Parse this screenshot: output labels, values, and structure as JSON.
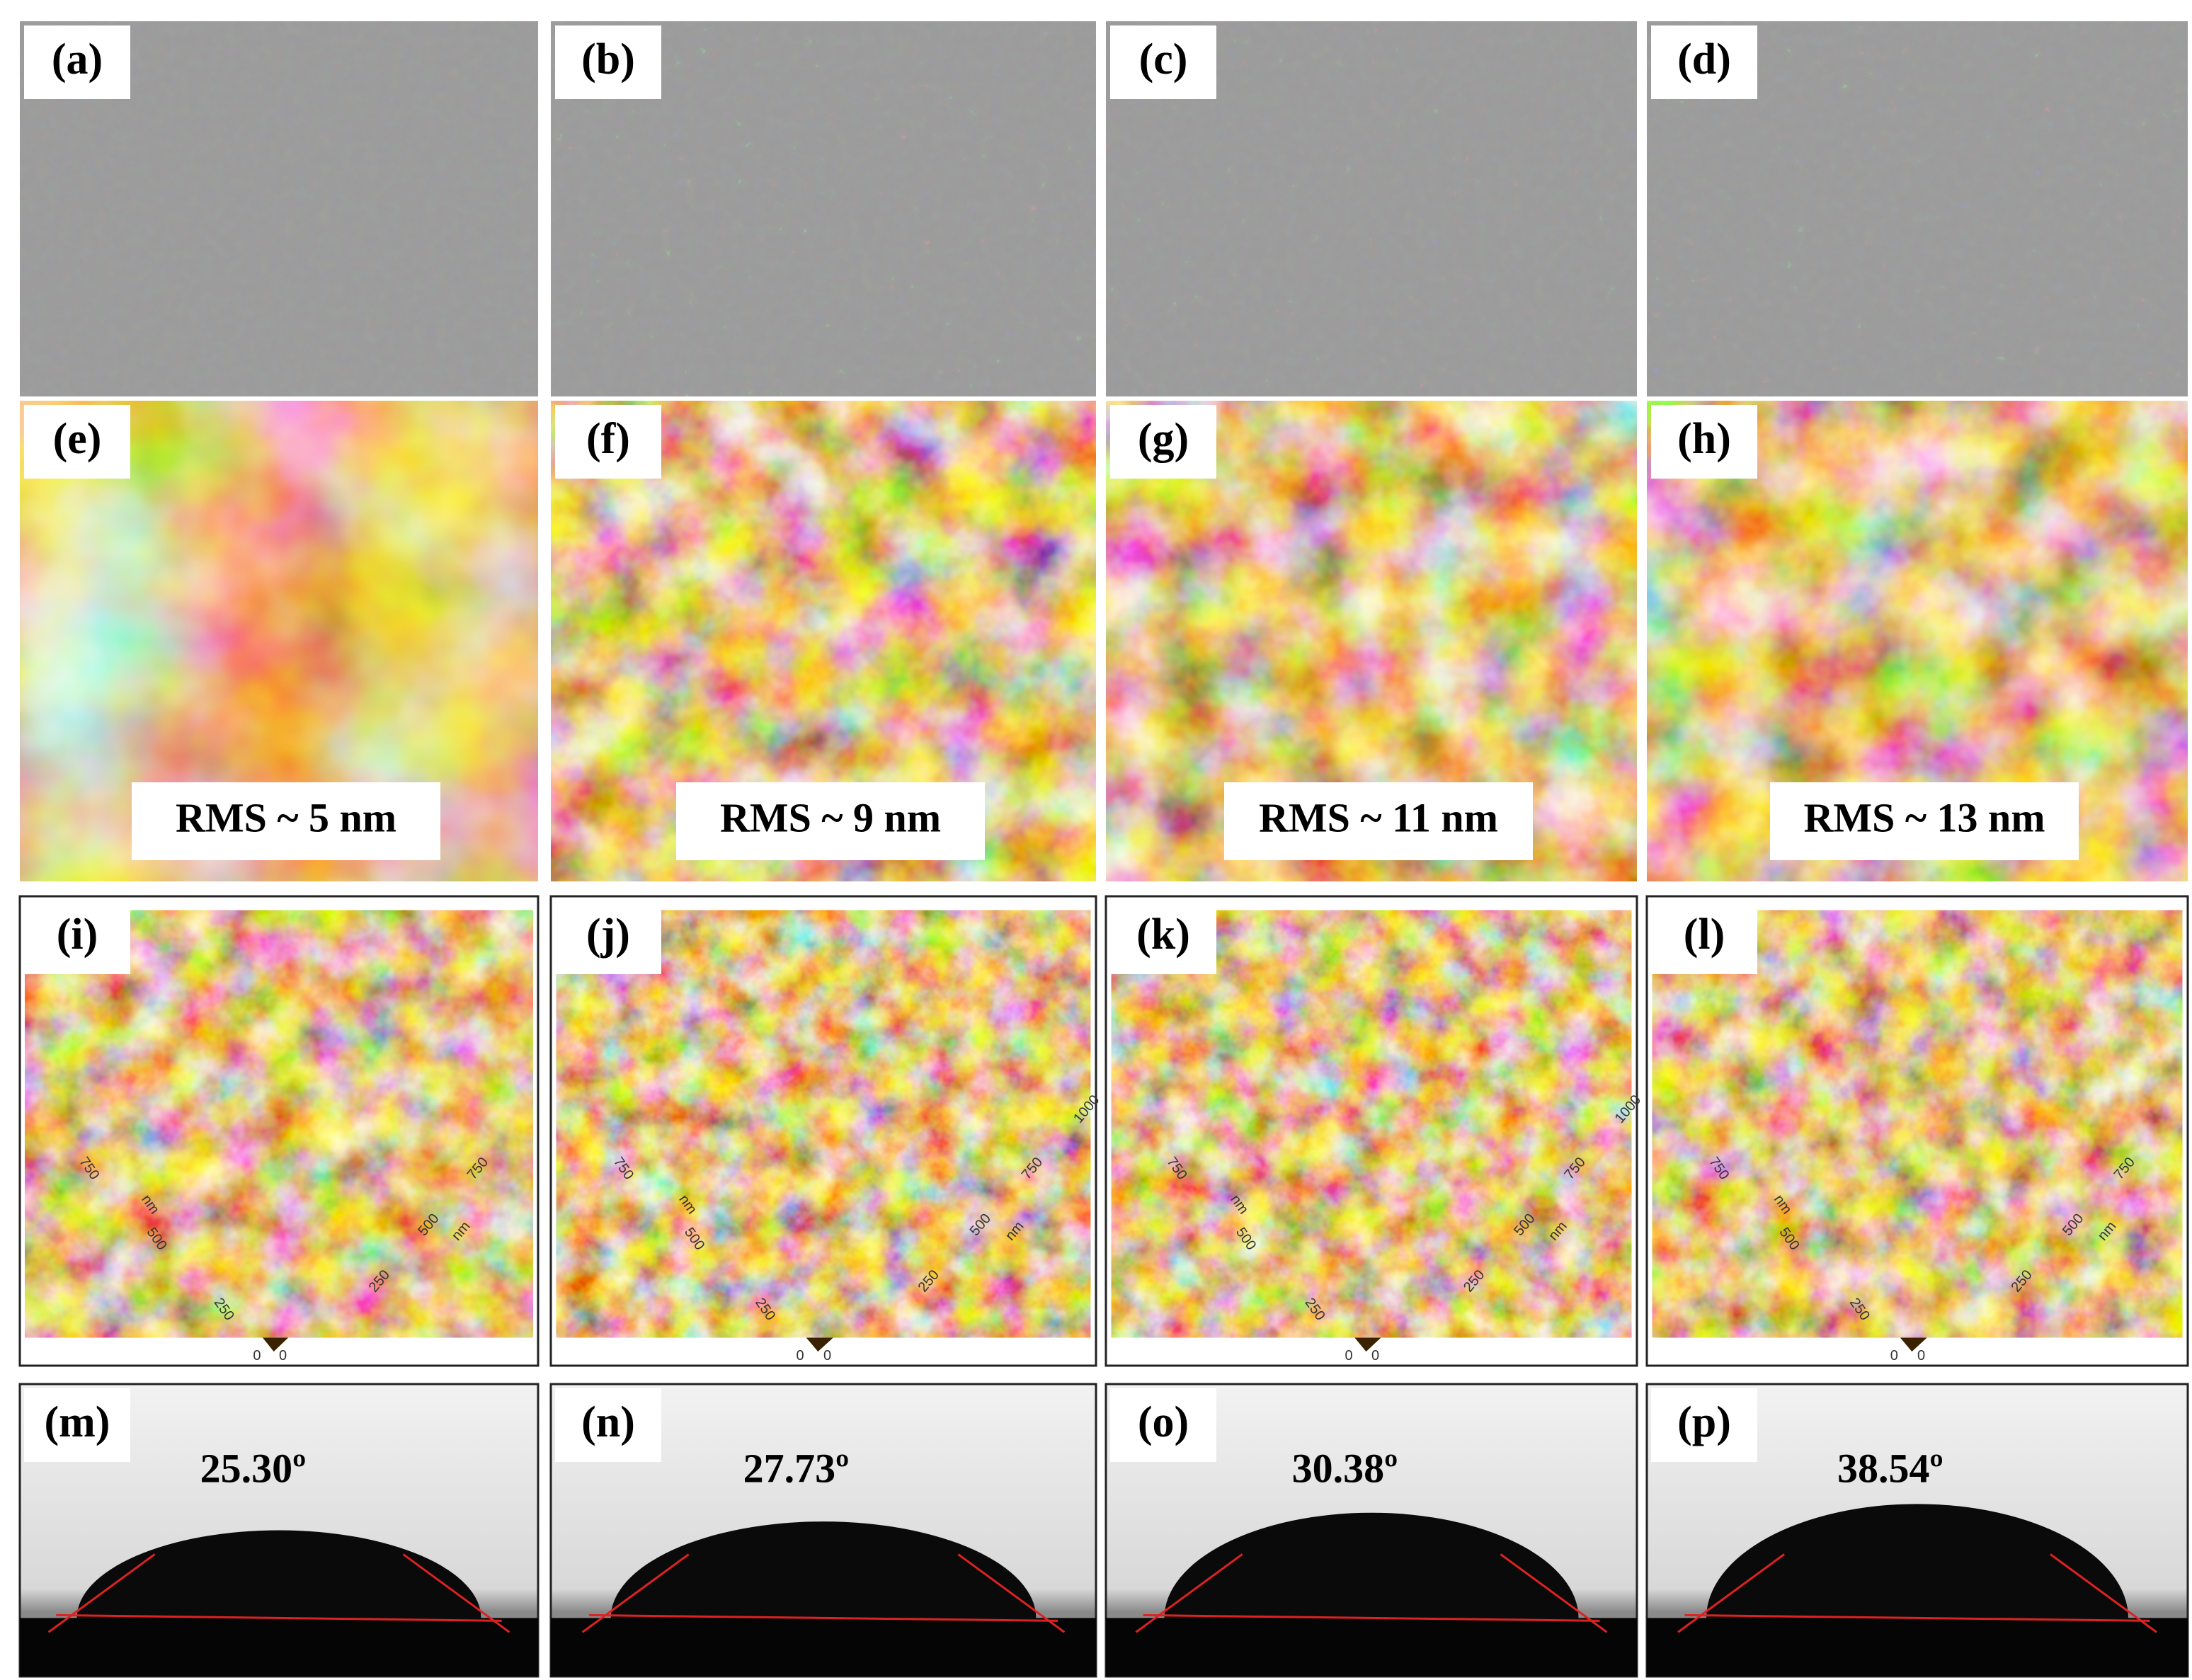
{
  "sem": [
    {
      "label": "(a)"
    },
    {
      "label": "(b)"
    },
    {
      "label": "(c)"
    },
    {
      "label": "(d)"
    }
  ],
  "afm": [
    {
      "label": "(e)",
      "rms": "RMS ~ 5 nm"
    },
    {
      "label": "(f)",
      "rms": "RMS ~ 9 nm"
    },
    {
      "label": "(g)",
      "rms": "RMS ~ 11 nm"
    },
    {
      "label": "(h)",
      "rms": "RMS ~ 13 nm"
    }
  ],
  "afm3d": [
    {
      "label": "(i)",
      "left_ticks": [
        "250",
        "500",
        "750"
      ],
      "right_ticks": [
        "250",
        "500",
        "750"
      ],
      "unit": "nm",
      "origin": [
        "0",
        "0"
      ]
    },
    {
      "label": "(j)",
      "left_ticks": [
        "250",
        "500",
        "750"
      ],
      "right_ticks": [
        "250",
        "500",
        "750",
        "1000"
      ],
      "unit": "nm",
      "origin": [
        "0",
        "0"
      ]
    },
    {
      "label": "(k)",
      "left_ticks": [
        "250",
        "500",
        "750"
      ],
      "right_ticks": [
        "250",
        "500",
        "750",
        "1000"
      ],
      "unit": "nm",
      "origin": [
        "0",
        "0"
      ]
    },
    {
      "label": "(l)",
      "left_ticks": [
        "250",
        "500",
        "750"
      ],
      "right_ticks": [
        "250",
        "500",
        "750"
      ],
      "unit": "nm",
      "origin": [
        "0",
        "0"
      ]
    }
  ],
  "drop": [
    {
      "label": "(m)",
      "angle": "25.30º"
    },
    {
      "label": "(n)",
      "angle": "27.73º"
    },
    {
      "label": "(o)",
      "angle": "30.38º"
    },
    {
      "label": "(p)",
      "angle": "38.54º"
    }
  ]
}
